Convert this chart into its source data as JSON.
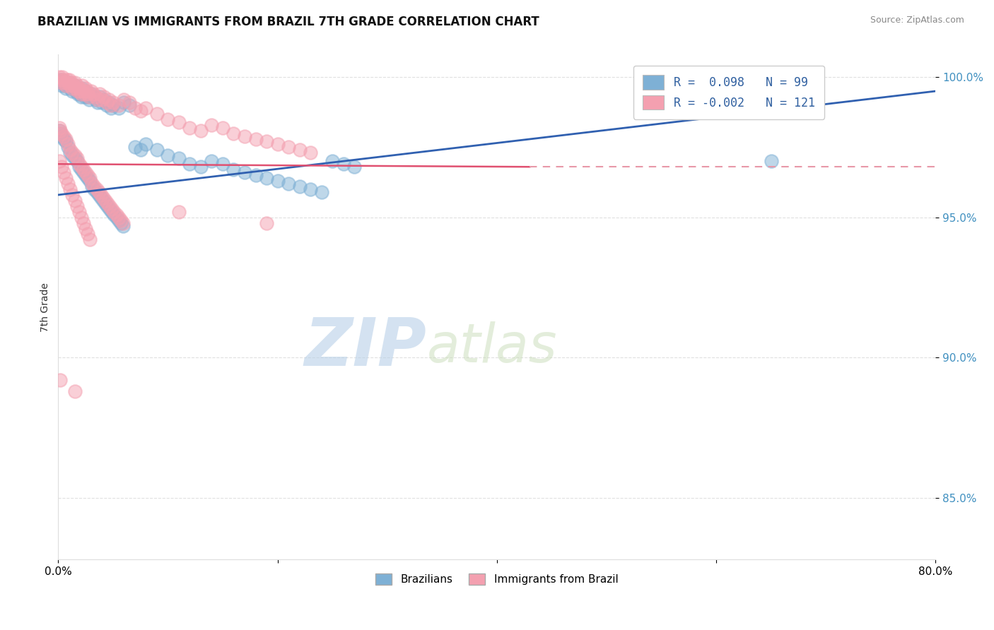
{
  "title": "BRAZILIAN VS IMMIGRANTS FROM BRAZIL 7TH GRADE CORRELATION CHART",
  "source": "Source: ZipAtlas.com",
  "ylabel": "7th Grade",
  "xlim": [
    0.0,
    0.8
  ],
  "ylim": [
    0.828,
    1.008
  ],
  "yticks": [
    0.85,
    0.9,
    0.95,
    1.0
  ],
  "ytick_labels": [
    "85.0%",
    "90.0%",
    "95.0%",
    "100.0%"
  ],
  "color_blue": "#7EB0D5",
  "color_pink": "#F4A0B0",
  "trendline_blue": [
    [
      0.0,
      0.958
    ],
    [
      0.8,
      0.995
    ]
  ],
  "trendline_pink": [
    [
      0.0,
      0.969
    ],
    [
      0.43,
      0.968
    ]
  ],
  "trendline_pink_dashed": [
    [
      0.0,
      0.969
    ],
    [
      0.8,
      0.968
    ]
  ],
  "watermark_zip": "ZIP",
  "watermark_atlas": "atlas",
  "blue_points": [
    [
      0.001,
      0.999
    ],
    [
      0.002,
      0.998
    ],
    [
      0.003,
      0.997
    ],
    [
      0.004,
      0.999
    ],
    [
      0.005,
      0.998
    ],
    [
      0.006,
      0.997
    ],
    [
      0.007,
      0.996
    ],
    [
      0.008,
      0.998
    ],
    [
      0.009,
      0.997
    ],
    [
      0.01,
      0.998
    ],
    [
      0.011,
      0.996
    ],
    [
      0.012,
      0.997
    ],
    [
      0.013,
      0.995
    ],
    [
      0.014,
      0.996
    ],
    [
      0.015,
      0.997
    ],
    [
      0.016,
      0.995
    ],
    [
      0.017,
      0.996
    ],
    [
      0.018,
      0.994
    ],
    [
      0.019,
      0.995
    ],
    [
      0.02,
      0.994
    ],
    [
      0.021,
      0.993
    ],
    [
      0.022,
      0.996
    ],
    [
      0.023,
      0.994
    ],
    [
      0.024,
      0.993
    ],
    [
      0.025,
      0.995
    ],
    [
      0.026,
      0.994
    ],
    [
      0.027,
      0.993
    ],
    [
      0.028,
      0.992
    ],
    [
      0.03,
      0.994
    ],
    [
      0.032,
      0.993
    ],
    [
      0.034,
      0.992
    ],
    [
      0.036,
      0.991
    ],
    [
      0.038,
      0.993
    ],
    [
      0.04,
      0.991
    ],
    [
      0.042,
      0.992
    ],
    [
      0.044,
      0.99
    ],
    [
      0.046,
      0.991
    ],
    [
      0.048,
      0.989
    ],
    [
      0.05,
      0.99
    ],
    [
      0.055,
      0.989
    ],
    [
      0.06,
      0.991
    ],
    [
      0.065,
      0.99
    ],
    [
      0.07,
      0.975
    ],
    [
      0.075,
      0.974
    ],
    [
      0.08,
      0.976
    ],
    [
      0.09,
      0.974
    ],
    [
      0.1,
      0.972
    ],
    [
      0.11,
      0.971
    ],
    [
      0.12,
      0.969
    ],
    [
      0.13,
      0.968
    ],
    [
      0.14,
      0.97
    ],
    [
      0.15,
      0.969
    ],
    [
      0.16,
      0.967
    ],
    [
      0.17,
      0.966
    ],
    [
      0.18,
      0.965
    ],
    [
      0.19,
      0.964
    ],
    [
      0.2,
      0.963
    ],
    [
      0.21,
      0.962
    ],
    [
      0.22,
      0.961
    ],
    [
      0.23,
      0.96
    ],
    [
      0.24,
      0.959
    ],
    [
      0.25,
      0.97
    ],
    [
      0.26,
      0.969
    ],
    [
      0.27,
      0.968
    ],
    [
      0.001,
      0.981
    ],
    [
      0.002,
      0.98
    ],
    [
      0.003,
      0.979
    ],
    [
      0.005,
      0.978
    ],
    [
      0.007,
      0.977
    ],
    [
      0.009,
      0.975
    ],
    [
      0.011,
      0.973
    ],
    [
      0.013,
      0.972
    ],
    [
      0.015,
      0.971
    ],
    [
      0.017,
      0.97
    ],
    [
      0.019,
      0.968
    ],
    [
      0.021,
      0.967
    ],
    [
      0.023,
      0.966
    ],
    [
      0.025,
      0.965
    ],
    [
      0.027,
      0.964
    ],
    [
      0.029,
      0.963
    ],
    [
      0.031,
      0.961
    ],
    [
      0.033,
      0.96
    ],
    [
      0.035,
      0.959
    ],
    [
      0.037,
      0.958
    ],
    [
      0.039,
      0.957
    ],
    [
      0.041,
      0.956
    ],
    [
      0.043,
      0.955
    ],
    [
      0.045,
      0.954
    ],
    [
      0.047,
      0.953
    ],
    [
      0.049,
      0.952
    ],
    [
      0.051,
      0.951
    ],
    [
      0.053,
      0.95
    ],
    [
      0.055,
      0.949
    ],
    [
      0.057,
      0.948
    ],
    [
      0.059,
      0.947
    ],
    [
      0.545,
      0.999
    ],
    [
      0.65,
      0.97
    ]
  ],
  "pink_points": [
    [
      0.001,
      1.0
    ],
    [
      0.002,
      0.999
    ],
    [
      0.003,
      0.998
    ],
    [
      0.004,
      1.0
    ],
    [
      0.005,
      0.999
    ],
    [
      0.006,
      0.998
    ],
    [
      0.007,
      0.997
    ],
    [
      0.008,
      0.999
    ],
    [
      0.009,
      0.998
    ],
    [
      0.01,
      0.999
    ],
    [
      0.011,
      0.997
    ],
    [
      0.012,
      0.998
    ],
    [
      0.013,
      0.996
    ],
    [
      0.014,
      0.997
    ],
    [
      0.015,
      0.998
    ],
    [
      0.016,
      0.996
    ],
    [
      0.017,
      0.997
    ],
    [
      0.018,
      0.995
    ],
    [
      0.019,
      0.996
    ],
    [
      0.02,
      0.995
    ],
    [
      0.021,
      0.994
    ],
    [
      0.022,
      0.997
    ],
    [
      0.023,
      0.995
    ],
    [
      0.024,
      0.994
    ],
    [
      0.025,
      0.996
    ],
    [
      0.026,
      0.995
    ],
    [
      0.027,
      0.994
    ],
    [
      0.028,
      0.993
    ],
    [
      0.03,
      0.995
    ],
    [
      0.032,
      0.994
    ],
    [
      0.034,
      0.993
    ],
    [
      0.036,
      0.992
    ],
    [
      0.038,
      0.994
    ],
    [
      0.04,
      0.992
    ],
    [
      0.042,
      0.993
    ],
    [
      0.044,
      0.991
    ],
    [
      0.046,
      0.992
    ],
    [
      0.048,
      0.99
    ],
    [
      0.05,
      0.991
    ],
    [
      0.055,
      0.99
    ],
    [
      0.06,
      0.992
    ],
    [
      0.065,
      0.991
    ],
    [
      0.07,
      0.989
    ],
    [
      0.075,
      0.988
    ],
    [
      0.08,
      0.989
    ],
    [
      0.09,
      0.987
    ],
    [
      0.1,
      0.985
    ],
    [
      0.11,
      0.984
    ],
    [
      0.12,
      0.982
    ],
    [
      0.13,
      0.981
    ],
    [
      0.14,
      0.983
    ],
    [
      0.15,
      0.982
    ],
    [
      0.16,
      0.98
    ],
    [
      0.17,
      0.979
    ],
    [
      0.18,
      0.978
    ],
    [
      0.19,
      0.977
    ],
    [
      0.2,
      0.976
    ],
    [
      0.21,
      0.975
    ],
    [
      0.22,
      0.974
    ],
    [
      0.23,
      0.973
    ],
    [
      0.001,
      0.982
    ],
    [
      0.002,
      0.981
    ],
    [
      0.003,
      0.98
    ],
    [
      0.005,
      0.979
    ],
    [
      0.007,
      0.978
    ],
    [
      0.009,
      0.976
    ],
    [
      0.011,
      0.974
    ],
    [
      0.013,
      0.973
    ],
    [
      0.015,
      0.972
    ],
    [
      0.017,
      0.971
    ],
    [
      0.019,
      0.969
    ],
    [
      0.021,
      0.968
    ],
    [
      0.023,
      0.967
    ],
    [
      0.025,
      0.966
    ],
    [
      0.027,
      0.965
    ],
    [
      0.029,
      0.964
    ],
    [
      0.031,
      0.962
    ],
    [
      0.033,
      0.961
    ],
    [
      0.035,
      0.96
    ],
    [
      0.037,
      0.959
    ],
    [
      0.039,
      0.958
    ],
    [
      0.041,
      0.957
    ],
    [
      0.043,
      0.956
    ],
    [
      0.045,
      0.955
    ],
    [
      0.047,
      0.954
    ],
    [
      0.049,
      0.953
    ],
    [
      0.051,
      0.952
    ],
    [
      0.053,
      0.951
    ],
    [
      0.055,
      0.95
    ],
    [
      0.057,
      0.949
    ],
    [
      0.059,
      0.948
    ],
    [
      0.001,
      0.97
    ],
    [
      0.003,
      0.968
    ],
    [
      0.005,
      0.966
    ],
    [
      0.007,
      0.964
    ],
    [
      0.009,
      0.962
    ],
    [
      0.011,
      0.96
    ],
    [
      0.013,
      0.958
    ],
    [
      0.015,
      0.956
    ],
    [
      0.017,
      0.954
    ],
    [
      0.019,
      0.952
    ],
    [
      0.021,
      0.95
    ],
    [
      0.023,
      0.948
    ],
    [
      0.025,
      0.946
    ],
    [
      0.027,
      0.944
    ],
    [
      0.029,
      0.942
    ],
    [
      0.002,
      0.892
    ],
    [
      0.015,
      0.888
    ],
    [
      0.11,
      0.952
    ],
    [
      0.19,
      0.948
    ]
  ]
}
